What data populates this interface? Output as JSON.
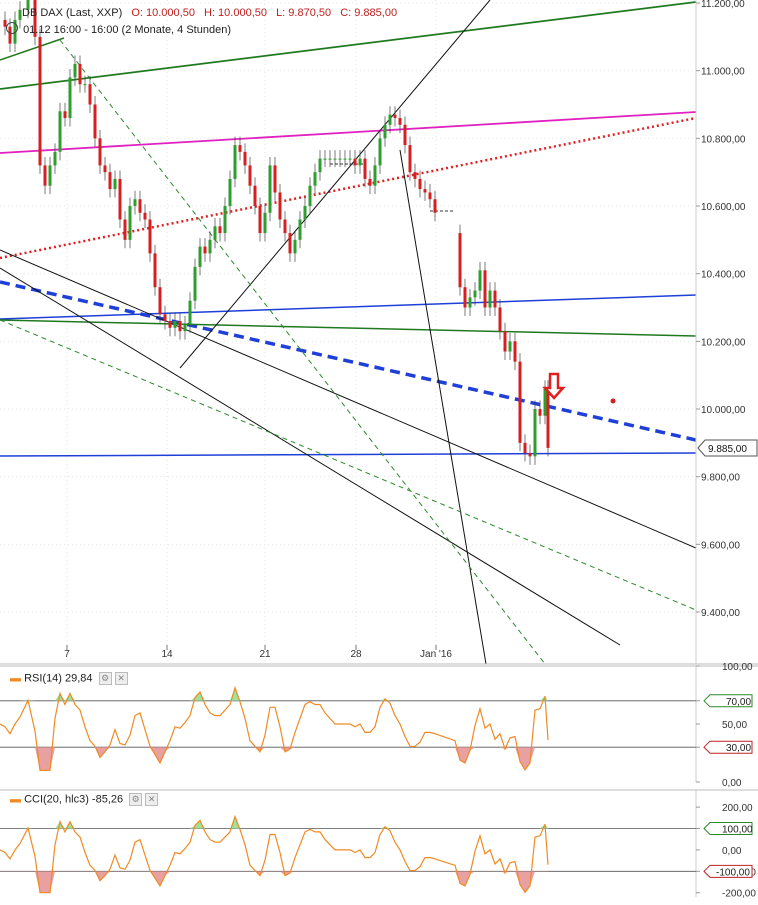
{
  "header": {
    "instrument": "DB DAX (Last, XXP)",
    "open": "O: 10.000,50",
    "high": "H: 10.000,50",
    "low": "L: 9.870,50",
    "close": "C: 9.885,00",
    "period": "01.12 16:00 - 16:00 (2 Monate, 4 Stunden)"
  },
  "price_badge": "9.885,00",
  "colors": {
    "up": "#2e9e2e",
    "down": "#d42020",
    "trend_green": "#1f7a1f",
    "magenta": "#e020c0",
    "blue": "#1e3fd8",
    "red_dotted": "#e02020",
    "grid": "#e6e6e6",
    "rsi_line": "#f08a24",
    "fill_green": "#9ee29e",
    "fill_red": "#e8a0a0",
    "arrow": "#e02020"
  },
  "icons": {
    "period_icon": "clock-icon",
    "arrow": "down-arrow-icon"
  },
  "chart_data": [
    {
      "type": "candlestick",
      "title": "DB DAX (Last, XXP)",
      "ylim": [
        9250,
        11250
      ],
      "y_ticks": [
        9400,
        9600,
        9800,
        10000,
        10200,
        10400,
        10600,
        10800,
        11000,
        11200
      ],
      "y_tick_labels": [
        "9.400,00",
        "9.600,00",
        "9.800,00",
        "10.000,00",
        "10.200,00",
        "10.400,00",
        "10.600,00",
        "10.800,00",
        "11.000,00",
        "11.200,00"
      ],
      "x_tick_labels": [
        "7",
        "14",
        "21",
        "28",
        "Jan '16"
      ],
      "close_points": [
        [
          0,
          11150
        ],
        [
          5,
          11130
        ],
        [
          10,
          11080
        ],
        [
          15,
          11150
        ],
        [
          20,
          11180
        ],
        [
          28,
          11250
        ],
        [
          35,
          11100
        ],
        [
          40,
          10720
        ],
        [
          45,
          10660
        ],
        [
          50,
          10720
        ],
        [
          55,
          10760
        ],
        [
          60,
          10880
        ],
        [
          65,
          10860
        ],
        [
          70,
          10980
        ],
        [
          75,
          11020
        ],
        [
          80,
          10960
        ],
        [
          85,
          10960
        ],
        [
          90,
          10900
        ],
        [
          95,
          10800
        ],
        [
          100,
          10720
        ],
        [
          105,
          10700
        ],
        [
          110,
          10650
        ],
        [
          115,
          10680
        ],
        [
          120,
          10560
        ],
        [
          125,
          10500
        ],
        [
          130,
          10600
        ],
        [
          135,
          10620
        ],
        [
          140,
          10580
        ],
        [
          145,
          10560
        ],
        [
          150,
          10460
        ],
        [
          155,
          10360
        ],
        [
          160,
          10280
        ],
        [
          165,
          10260
        ],
        [
          170,
          10240
        ],
        [
          175,
          10260
        ],
        [
          180,
          10230
        ],
        [
          185,
          10250
        ],
        [
          190,
          10320
        ],
        [
          195,
          10420
        ],
        [
          200,
          10480
        ],
        [
          205,
          10460
        ],
        [
          210,
          10500
        ],
        [
          215,
          10540
        ],
        [
          220,
          10520
        ],
        [
          225,
          10600
        ],
        [
          230,
          10680
        ],
        [
          235,
          10780
        ],
        [
          240,
          10760
        ],
        [
          245,
          10720
        ],
        [
          250,
          10660
        ],
        [
          255,
          10600
        ],
        [
          260,
          10520
        ],
        [
          265,
          10580
        ],
        [
          270,
          10720
        ],
        [
          275,
          10640
        ],
        [
          280,
          10560
        ],
        [
          285,
          10520
        ],
        [
          290,
          10460
        ],
        [
          295,
          10500
        ],
        [
          300,
          10560
        ],
        [
          305,
          10600
        ],
        [
          310,
          10660
        ],
        [
          315,
          10700
        ],
        [
          320,
          10740
        ],
        [
          325,
          10740
        ],
        [
          330,
          10740
        ],
        [
          335,
          10740
        ],
        [
          340,
          10740
        ],
        [
          345,
          10740
        ],
        [
          350,
          10740
        ],
        [
          355,
          10720
        ],
        [
          360,
          10740
        ],
        [
          365,
          10680
        ],
        [
          370,
          10660
        ],
        [
          375,
          10720
        ],
        [
          380,
          10800
        ],
        [
          385,
          10840
        ],
        [
          390,
          10870
        ],
        [
          395,
          10860
        ],
        [
          400,
          10840
        ],
        [
          405,
          10780
        ],
        [
          410,
          10700
        ],
        [
          415,
          10680
        ],
        [
          420,
          10650
        ],
        [
          425,
          10640
        ],
        [
          430,
          10620
        ],
        [
          435,
          10580
        ],
        [
          455,
          10520
        ],
        [
          460,
          10360
        ],
        [
          465,
          10300
        ],
        [
          470,
          10330
        ],
        [
          475,
          10350
        ],
        [
          480,
          10410
        ],
        [
          485,
          10300
        ],
        [
          490,
          10350
        ],
        [
          495,
          10300
        ],
        [
          500,
          10230
        ],
        [
          505,
          10170
        ],
        [
          510,
          10200
        ],
        [
          515,
          10140
        ],
        [
          520,
          9900
        ],
        [
          525,
          9870
        ],
        [
          530,
          9860
        ],
        [
          535,
          10000
        ],
        [
          540,
          9980
        ],
        [
          545,
          10060
        ],
        [
          548,
          9885
        ]
      ]
    },
    {
      "type": "line",
      "title": "RSI(14) 29,84",
      "ylim": [
        0,
        100
      ],
      "y_tick_labels": [
        "100,00",
        "70,00",
        "50,00",
        "30,00",
        "0,00"
      ],
      "levels": [
        70,
        30
      ]
    },
    {
      "type": "line",
      "title": "CCI(20, hlc3) -85,26",
      "ylim": [
        -220,
        280
      ],
      "y_tick_labels": [
        "200,00",
        "100,00",
        "0,00",
        "-100,00",
        "-200,00"
      ],
      "levels": [
        100,
        -100
      ]
    }
  ]
}
